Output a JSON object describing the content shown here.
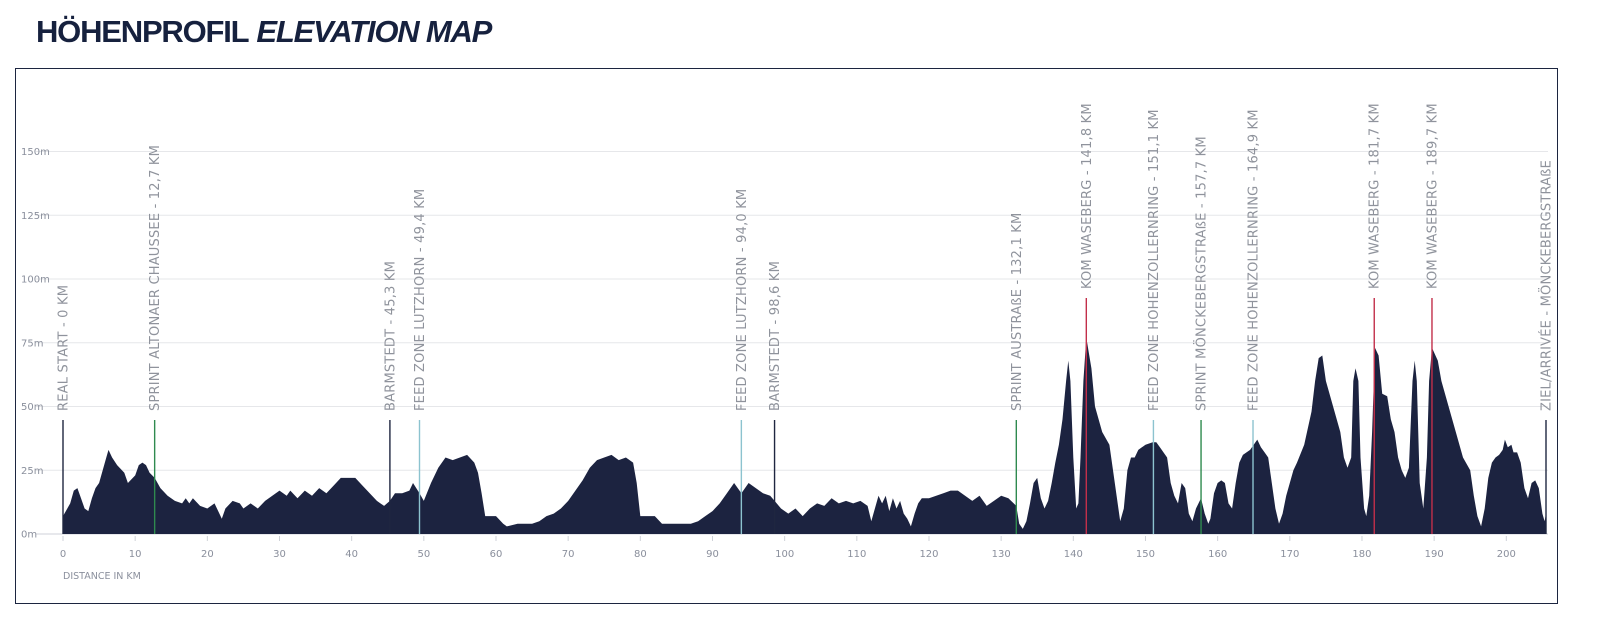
{
  "header": {
    "title_de": "HÖHENPROFIL",
    "title_en": "ELEVATION MAP"
  },
  "chart_data": {
    "type": "area",
    "xlabel": "DISTANCE IN KM",
    "xlim": [
      0,
      205.5
    ],
    "ylim": [
      0,
      160
    ],
    "x_ticks": [
      0,
      10,
      20,
      30,
      40,
      50,
      60,
      70,
      80,
      90,
      100,
      110,
      120,
      130,
      140,
      150,
      160,
      170,
      180,
      190,
      200
    ],
    "y_ticks": [
      0,
      25,
      50,
      75,
      100,
      125,
      150
    ],
    "y_tick_labels": [
      "0m",
      "25m",
      "50m",
      "75m",
      "100m",
      "125m",
      "150m"
    ],
    "area_color": "#1c2340",
    "grid": true,
    "profile": [
      [
        0,
        7
      ],
      [
        1,
        12
      ],
      [
        1.5,
        17
      ],
      [
        2,
        18
      ],
      [
        2.5,
        14
      ],
      [
        3,
        10
      ],
      [
        3.5,
        9
      ],
      [
        4,
        14
      ],
      [
        4.5,
        18
      ],
      [
        5,
        20
      ],
      [
        5.5,
        25
      ],
      [
        6,
        30
      ],
      [
        6.3,
        33
      ],
      [
        6.8,
        30
      ],
      [
        7.5,
        27
      ],
      [
        8.5,
        24
      ],
      [
        9,
        20
      ],
      [
        10,
        23
      ],
      [
        10.5,
        27
      ],
      [
        11,
        28
      ],
      [
        11.5,
        27
      ],
      [
        12,
        24
      ],
      [
        12.7,
        22
      ],
      [
        13.5,
        18
      ],
      [
        14.5,
        15
      ],
      [
        15.5,
        13
      ],
      [
        16.5,
        12
      ],
      [
        17,
        14
      ],
      [
        17.5,
        12
      ],
      [
        18,
        14
      ],
      [
        19,
        11
      ],
      [
        20,
        10
      ],
      [
        21,
        12
      ],
      [
        21.5,
        9
      ],
      [
        22,
        6
      ],
      [
        22.5,
        10
      ],
      [
        23.5,
        13
      ],
      [
        24.5,
        12
      ],
      [
        25,
        10
      ],
      [
        26,
        12
      ],
      [
        27,
        10
      ],
      [
        28,
        13
      ],
      [
        29,
        15
      ],
      [
        30,
        17
      ],
      [
        31,
        15
      ],
      [
        31.5,
        17
      ],
      [
        32.5,
        14
      ],
      [
        33.5,
        17
      ],
      [
        34.5,
        15
      ],
      [
        35.5,
        18
      ],
      [
        36.5,
        16
      ],
      [
        37.5,
        19
      ],
      [
        38.5,
        22
      ],
      [
        39.5,
        22
      ],
      [
        40.5,
        22
      ],
      [
        41.5,
        19
      ],
      [
        42.5,
        16
      ],
      [
        43.5,
        13
      ],
      [
        44.5,
        11
      ],
      [
        45.3,
        13
      ],
      [
        46,
        16
      ],
      [
        47,
        16
      ],
      [
        48,
        17
      ],
      [
        48.5,
        20
      ],
      [
        49.4,
        16
      ],
      [
        50,
        13
      ],
      [
        51,
        20
      ],
      [
        52,
        26
      ],
      [
        53,
        30
      ],
      [
        54,
        29
      ],
      [
        55,
        30
      ],
      [
        56,
        31
      ],
      [
        57,
        28
      ],
      [
        57.5,
        24
      ],
      [
        58,
        16
      ],
      [
        58.5,
        7
      ],
      [
        60,
        7
      ],
      [
        61,
        4
      ],
      [
        61.5,
        3
      ],
      [
        63,
        4
      ],
      [
        65,
        4
      ],
      [
        66,
        5
      ],
      [
        67,
        7
      ],
      [
        68,
        8
      ],
      [
        69,
        10
      ],
      [
        70,
        13
      ],
      [
        71,
        17
      ],
      [
        72,
        21
      ],
      [
        73,
        26
      ],
      [
        74,
        29
      ],
      [
        75,
        30
      ],
      [
        76,
        31
      ],
      [
        77,
        29
      ],
      [
        78,
        30
      ],
      [
        79,
        28
      ],
      [
        79.5,
        20
      ],
      [
        80,
        7
      ],
      [
        82,
        7
      ],
      [
        83,
        4
      ],
      [
        87,
        4
      ],
      [
        88,
        5
      ],
      [
        89,
        7
      ],
      [
        90,
        9
      ],
      [
        91,
        12
      ],
      [
        92,
        16
      ],
      [
        93,
        20
      ],
      [
        94,
        16
      ],
      [
        95,
        20
      ],
      [
        96,
        18
      ],
      [
        97,
        16
      ],
      [
        98,
        15
      ],
      [
        98.6,
        13
      ],
      [
        99.5,
        10
      ],
      [
        100.5,
        8
      ],
      [
        101.5,
        10
      ],
      [
        102.5,
        7
      ],
      [
        103.5,
        10
      ],
      [
        104.5,
        12
      ],
      [
        105.5,
        11
      ],
      [
        106.5,
        14
      ],
      [
        107.5,
        12
      ],
      [
        108.5,
        13
      ],
      [
        109.5,
        12
      ],
      [
        110.5,
        13
      ],
      [
        111.5,
        11
      ],
      [
        112,
        5
      ],
      [
        112.5,
        10
      ],
      [
        113,
        15
      ],
      [
        113.5,
        12
      ],
      [
        114,
        15
      ],
      [
        114.5,
        9
      ],
      [
        115,
        14
      ],
      [
        115.5,
        10
      ],
      [
        116,
        13
      ],
      [
        116.5,
        8
      ],
      [
        117,
        6
      ],
      [
        117.5,
        3
      ],
      [
        118,
        8
      ],
      [
        118.5,
        12
      ],
      [
        119,
        14
      ],
      [
        120,
        14
      ],
      [
        121,
        15
      ],
      [
        122,
        16
      ],
      [
        123,
        17
      ],
      [
        124,
        17
      ],
      [
        125,
        15
      ],
      [
        126,
        13
      ],
      [
        127,
        15
      ],
      [
        128,
        11
      ],
      [
        129,
        13
      ],
      [
        130,
        15
      ],
      [
        131,
        14
      ],
      [
        132.1,
        11
      ],
      [
        132.5,
        4
      ],
      [
        133,
        2
      ],
      [
        133.5,
        5
      ],
      [
        134,
        12
      ],
      [
        134.5,
        20
      ],
      [
        135,
        22
      ],
      [
        135.5,
        14
      ],
      [
        136,
        10
      ],
      [
        136.5,
        13
      ],
      [
        137,
        20
      ],
      [
        137.5,
        28
      ],
      [
        138,
        35
      ],
      [
        138.5,
        45
      ],
      [
        139,
        60
      ],
      [
        139.3,
        68
      ],
      [
        139.6,
        60
      ],
      [
        140,
        30
      ],
      [
        140.4,
        10
      ],
      [
        140.7,
        12
      ],
      [
        141,
        30
      ],
      [
        141.4,
        60
      ],
      [
        141.8,
        77
      ],
      [
        142.5,
        65
      ],
      [
        143,
        50
      ],
      [
        144,
        40
      ],
      [
        145,
        35
      ],
      [
        145.5,
        25
      ],
      [
        146,
        15
      ],
      [
        146.5,
        5
      ],
      [
        147,
        10
      ],
      [
        147.5,
        25
      ],
      [
        148,
        30
      ],
      [
        148.5,
        30
      ],
      [
        149,
        33
      ],
      [
        149.5,
        34
      ],
      [
        150,
        35
      ],
      [
        151,
        36
      ],
      [
        151.5,
        36
      ],
      [
        152,
        34
      ],
      [
        153,
        30
      ],
      [
        153.5,
        20
      ],
      [
        154,
        15
      ],
      [
        154.5,
        12
      ],
      [
        155,
        20
      ],
      [
        155.5,
        18
      ],
      [
        156,
        8
      ],
      [
        156.5,
        5
      ],
      [
        157,
        10
      ],
      [
        157.7,
        14
      ],
      [
        158.2,
        8
      ],
      [
        158.7,
        4
      ],
      [
        159,
        6
      ],
      [
        159.5,
        16
      ],
      [
        160,
        20
      ],
      [
        160.5,
        21
      ],
      [
        161,
        20
      ],
      [
        161.5,
        12
      ],
      [
        162,
        10
      ],
      [
        162.5,
        20
      ],
      [
        163,
        28
      ],
      [
        163.5,
        31
      ],
      [
        164,
        32
      ],
      [
        164.5,
        33
      ],
      [
        165,
        35
      ],
      [
        165.5,
        37
      ],
      [
        166,
        34
      ],
      [
        166.5,
        32
      ],
      [
        167,
        30
      ],
      [
        167.5,
        20
      ],
      [
        168,
        10
      ],
      [
        168.5,
        4
      ],
      [
        169,
        8
      ],
      [
        169.5,
        15
      ],
      [
        170,
        20
      ],
      [
        170.5,
        25
      ],
      [
        171,
        28
      ],
      [
        172,
        35
      ],
      [
        173,
        48
      ],
      [
        173.5,
        60
      ],
      [
        174,
        69
      ],
      [
        174.5,
        70
      ],
      [
        175,
        60
      ],
      [
        175.5,
        55
      ],
      [
        176,
        50
      ],
      [
        177,
        40
      ],
      [
        177.5,
        30
      ],
      [
        178,
        26
      ],
      [
        178.5,
        30
      ],
      [
        178.8,
        60
      ],
      [
        179.1,
        65
      ],
      [
        179.5,
        60
      ],
      [
        179.8,
        30
      ],
      [
        180.3,
        10
      ],
      [
        180.6,
        7
      ],
      [
        181,
        15
      ],
      [
        181.4,
        40
      ],
      [
        181.8,
        73
      ],
      [
        182.3,
        70
      ],
      [
        182.8,
        55
      ],
      [
        183.5,
        54
      ],
      [
        184,
        45
      ],
      [
        184.5,
        40
      ],
      [
        185,
        30
      ],
      [
        185.5,
        25
      ],
      [
        186,
        22
      ],
      [
        186.5,
        26
      ],
      [
        187,
        60
      ],
      [
        187.3,
        68
      ],
      [
        187.6,
        60
      ],
      [
        188,
        20
      ],
      [
        188.5,
        10
      ],
      [
        189,
        30
      ],
      [
        189.3,
        60
      ],
      [
        189.7,
        73
      ],
      [
        190.5,
        68
      ],
      [
        191,
        60
      ],
      [
        192,
        50
      ],
      [
        193,
        40
      ],
      [
        194,
        30
      ],
      [
        195,
        25
      ],
      [
        195.5,
        15
      ],
      [
        196,
        7
      ],
      [
        196.5,
        3
      ],
      [
        197,
        10
      ],
      [
        197.5,
        22
      ],
      [
        198,
        28
      ],
      [
        198.5,
        30
      ],
      [
        199,
        31
      ],
      [
        199.5,
        33
      ],
      [
        199.8,
        37
      ],
      [
        200.2,
        34
      ],
      [
        200.7,
        35
      ],
      [
        201,
        32
      ],
      [
        201.5,
        32
      ],
      [
        202,
        28
      ],
      [
        202.5,
        18
      ],
      [
        203,
        14
      ],
      [
        203.5,
        20
      ],
      [
        204,
        21
      ],
      [
        204.5,
        18
      ],
      [
        205,
        8
      ],
      [
        205.3,
        5
      ],
      [
        205.5,
        8
      ]
    ],
    "markers": [
      {
        "label": "REAL START - 0 KM",
        "km": 0,
        "color": "#1f2640",
        "top": 45
      },
      {
        "label": "SPRINT ALTONAER CHAUSSEE - 12,7 KM",
        "km": 12.7,
        "color": "#2f8a4f",
        "top": 45
      },
      {
        "label": "BARMSTEDT - 45,3 KM",
        "km": 45.3,
        "color": "#1f2640",
        "top": 45
      },
      {
        "label": "FEED ZONE LUTZHORN - 49,4 KM",
        "km": 49.4,
        "color": "#8cc3cf",
        "top": 45
      },
      {
        "label": "FEED ZONE LUTZHORN - 94,0 KM",
        "km": 94.0,
        "color": "#8cc3cf",
        "top": 45
      },
      {
        "label": "BARMSTEDT - 98,6 KM",
        "km": 98.6,
        "color": "#1f2640",
        "top": 45
      },
      {
        "label": "SPRINT AUSTRAßE - 132,1 KM",
        "km": 132.1,
        "color": "#2f8a4f",
        "top": 45
      },
      {
        "label": "KOM WASEBERG - 141,8 KM",
        "km": 141.8,
        "color": "#c22f4a",
        "top": 92
      },
      {
        "label": "FEED ZONE HOHENZOLLERNRING - 151,1 KM",
        "km": 151.1,
        "color": "#8cc3cf",
        "top": 45
      },
      {
        "label": "SPRINT MÖNCKEBERGSTRAßE - 157,7 KM",
        "km": 157.7,
        "color": "#2f8a4f",
        "top": 45
      },
      {
        "label": "FEED ZONE HOHENZOLLERNRING - 164,9 KM",
        "km": 164.9,
        "color": "#8cc3cf",
        "top": 45
      },
      {
        "label": "KOM WASEBERG - 181,7 KM",
        "km": 181.7,
        "color": "#c22f4a",
        "top": 92
      },
      {
        "label": "KOM WASEBERG - 189,7 KM",
        "km": 189.7,
        "color": "#c22f4a",
        "top": 92
      },
      {
        "label": "ZIEL/ARRIVÉE - MÖNCKEBERGSTRAßE",
        "km": 205.5,
        "color": "#1f2640",
        "top": 45
      }
    ]
  }
}
